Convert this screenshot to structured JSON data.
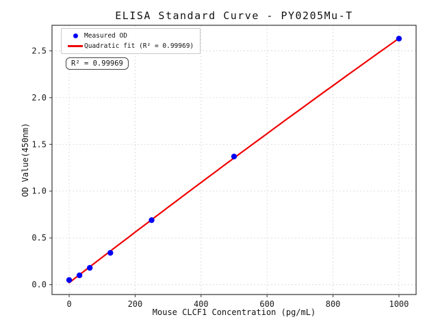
{
  "chart_data": {
    "type": "scatter",
    "title": "ELISA Standard Curve - PY0205Mu-T",
    "xlabel": "Mouse CLCF1 Concentration (pg/mL)",
    "ylabel": "OD Value(450nm)",
    "x": [
      0,
      31.25,
      62.5,
      125,
      250,
      500,
      1000
    ],
    "y": [
      0.05,
      0.1,
      0.18,
      0.34,
      0.69,
      1.37,
      2.63
    ],
    "fit": {
      "type": "quadratic",
      "r_squared": "0.99969",
      "range": [
        0,
        1000
      ]
    },
    "xticks": {
      "values": [
        0,
        200,
        400,
        600,
        800,
        1000
      ],
      "labels": [
        "0",
        "200",
        "400",
        "600",
        "800",
        "1000"
      ]
    },
    "yticks": {
      "values": [
        0,
        0.5,
        1.0,
        1.5,
        2.0,
        2.5
      ],
      "labels": [
        "0.0",
        "0.5",
        "1.0",
        "1.5",
        "2.0",
        "2.5"
      ]
    },
    "xlim": [
      -52,
      1052
    ],
    "ylim": [
      -0.105,
      2.773
    ],
    "grid": true,
    "legend": {
      "position": "upper left",
      "entries": [
        {
          "label": "Measured OD",
          "marker": "dot",
          "color": "#0000f5"
        },
        {
          "label": "Quadratic fit (R² = 0.99969)",
          "marker": "line",
          "color": "#f00000"
        }
      ]
    },
    "annotation": "R² = 0.99969",
    "colors": {
      "scatter": "#0000f5",
      "fit_line": "#f00000",
      "grid": "#d9d9d9",
      "spine": "#333333",
      "text": "#1a1a1a",
      "background": "#ffffff"
    }
  }
}
